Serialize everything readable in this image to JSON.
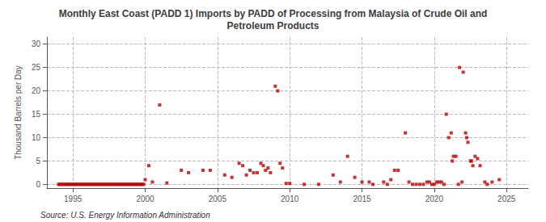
{
  "chart_data": {
    "type": "scatter",
    "title": "Monthly East Coast (PADD 1) Imports by PADD of Processing from Malaysia of Crude Oil and\nPetroleum Products",
    "ylabel": "Thousand Barrels per Day",
    "annotations": [
      "Source: U.S. Energy Information Administration"
    ],
    "color": "#bb0000",
    "marker": "square",
    "grid": true,
    "xlim": [
      1993.2,
      2026.5
    ],
    "ylim": [
      -0.8,
      31.5
    ],
    "xticks": [
      1995,
      2000,
      2005,
      2010,
      2015,
      2020,
      2025
    ],
    "yticks": [
      0,
      5,
      10,
      15,
      20,
      25,
      30
    ],
    "x": [
      1994.0,
      1994.1,
      1994.2,
      1994.3,
      1994.4,
      1994.5,
      1994.6,
      1994.7,
      1994.8,
      1994.9,
      1995.0,
      1995.1,
      1995.2,
      1995.3,
      1995.4,
      1995.5,
      1995.6,
      1995.7,
      1995.8,
      1995.9,
      1996.0,
      1996.1,
      1996.2,
      1996.3,
      1996.4,
      1996.5,
      1996.6,
      1996.7,
      1996.8,
      1996.9,
      1997.0,
      1997.1,
      1997.2,
      1997.3,
      1997.4,
      1997.5,
      1997.6,
      1997.7,
      1997.8,
      1997.9,
      1998.0,
      1998.1,
      1998.2,
      1998.3,
      1998.4,
      1998.5,
      1998.6,
      1998.7,
      1998.8,
      1998.9,
      1999.0,
      1999.1,
      1999.2,
      1999.3,
      1999.4,
      1999.5,
      1999.6,
      1999.7,
      1999.8,
      1999.9,
      2000.0,
      2000.25,
      2000.5,
      2001.0,
      2001.5,
      2002.5,
      2003.0,
      2004.0,
      2004.5,
      2005.5,
      2006.0,
      2006.5,
      2006.75,
      2007.0,
      2007.25,
      2007.5,
      2007.75,
      2008.0,
      2008.17,
      2008.33,
      2008.5,
      2008.67,
      2009.0,
      2009.17,
      2009.33,
      2009.5,
      2009.75,
      2010.0,
      2011.0,
      2012.0,
      2013.0,
      2013.5,
      2014.0,
      2014.5,
      2015.0,
      2015.5,
      2015.75,
      2016.5,
      2016.75,
      2017.0,
      2017.25,
      2017.5,
      2018.0,
      2018.25,
      2018.5,
      2018.75,
      2019.0,
      2019.25,
      2019.5,
      2019.67,
      2019.83,
      2020.0,
      2020.17,
      2020.33,
      2020.5,
      2020.67,
      2020.83,
      2021.0,
      2021.17,
      2021.25,
      2021.33,
      2021.5,
      2021.67,
      2021.75,
      2021.92,
      2022.0,
      2022.17,
      2022.25,
      2022.33,
      2022.5,
      2022.58,
      2022.67,
      2022.83,
      2023.0,
      2023.17,
      2023.5,
      2023.67,
      2024.0,
      2024.5
    ],
    "values": [
      0.0,
      0.0,
      0.0,
      0.0,
      0.0,
      0.0,
      0.0,
      0.0,
      0.0,
      0.0,
      0.0,
      0.0,
      0.0,
      0.0,
      0.0,
      0.0,
      0.0,
      0.0,
      0.0,
      0.0,
      0.0,
      0.0,
      0.0,
      0.0,
      0.0,
      0.0,
      0.0,
      0.0,
      0.0,
      0.0,
      0.0,
      0.0,
      0.0,
      0.0,
      0.0,
      0.0,
      0.0,
      0.0,
      0.0,
      0.0,
      0.0,
      0.0,
      0.0,
      0.0,
      0.0,
      0.0,
      0.0,
      0.0,
      0.0,
      0.0,
      0.0,
      0.0,
      0.0,
      0.0,
      0.0,
      0.0,
      0.0,
      0.0,
      0.0,
      0.0,
      1.0,
      4.0,
      0.5,
      17.0,
      0.3,
      3.0,
      2.5,
      3.0,
      3.0,
      2.0,
      1.5,
      4.5,
      4.0,
      2.0,
      3.0,
      2.5,
      2.5,
      4.5,
      4.0,
      3.0,
      3.5,
      2.5,
      21.0,
      20.0,
      4.5,
      3.5,
      0.2,
      0.2,
      0.0,
      0.0,
      2.0,
      0.5,
      6.0,
      1.5,
      0.5,
      0.5,
      0.0,
      0.5,
      0.0,
      1.0,
      3.0,
      3.0,
      11.0,
      0.5,
      0.0,
      0.0,
      0.0,
      0.0,
      0.5,
      0.5,
      0.0,
      0.0,
      0.5,
      0.5,
      0.5,
      0.0,
      15.0,
      10.0,
      11.0,
      5.0,
      6.0,
      6.0,
      0.0,
      25.0,
      0.5,
      24.0,
      11.0,
      10.0,
      9.0,
      5.0,
      5.0,
      4.0,
      6.0,
      5.5,
      4.0,
      0.5,
      0.0,
      0.5,
      1.0
    ]
  }
}
